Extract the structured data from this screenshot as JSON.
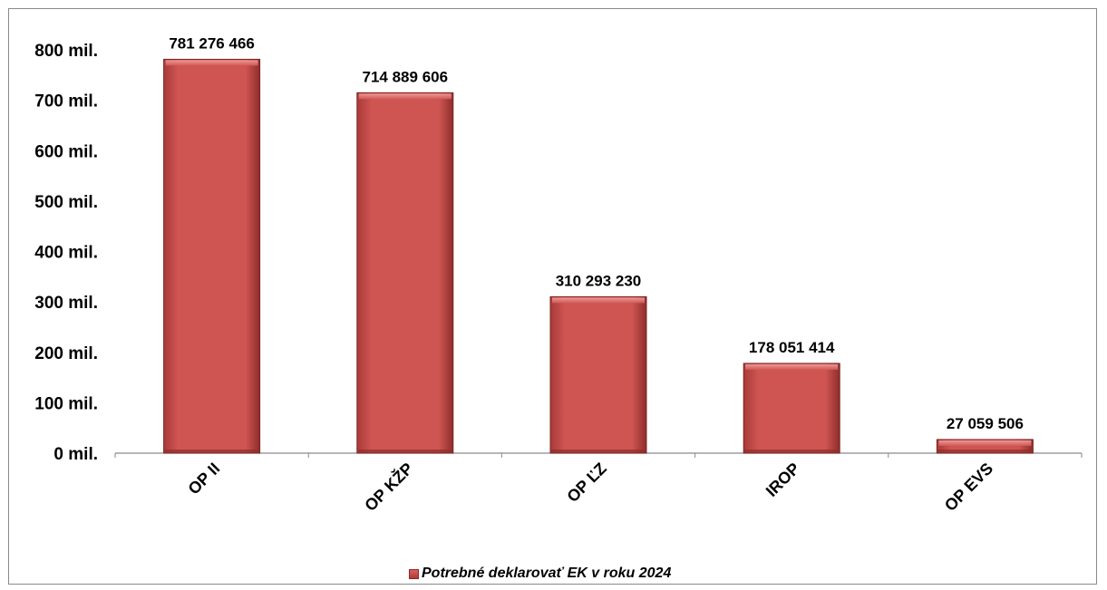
{
  "chart_data": {
    "type": "bar",
    "categories": [
      "OP II",
      "OP KŽP",
      "OP ĽZ",
      "IROP",
      "OP EVS"
    ],
    "series": [
      {
        "name": "Potrebné deklarovať EK v roku 2024",
        "values": [
          781276466,
          714889606,
          310293230,
          178051414,
          27059506
        ],
        "data_labels": [
          "781 276 466",
          "714 889 606",
          "310 293 230",
          "178 051 414",
          "27 059 506"
        ]
      }
    ],
    "y_ticks": [
      {
        "value": 0,
        "label": "0 mil."
      },
      {
        "value": 100000000,
        "label": "100 mil."
      },
      {
        "value": 200000000,
        "label": "200 mil."
      },
      {
        "value": 300000000,
        "label": "300 mil."
      },
      {
        "value": 400000000,
        "label": "400 mil."
      },
      {
        "value": 500000000,
        "label": "500 mil."
      },
      {
        "value": 600000000,
        "label": "600 mil."
      },
      {
        "value": 700000000,
        "label": "700 mil."
      },
      {
        "value": 800000000,
        "label": "800 mil."
      }
    ],
    "ylim": [
      0,
      800000000
    ],
    "grid": false,
    "legend_position": "bottom",
    "bar_color": "#cd5350"
  },
  "legend": {
    "label": "Potrebné deklarovať EK v roku 2024"
  }
}
